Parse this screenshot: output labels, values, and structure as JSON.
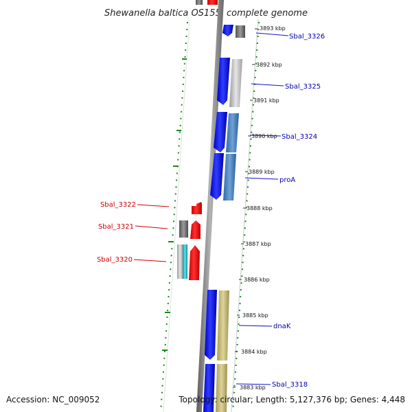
{
  "title": "Shewanella baltica OS155, complete genome",
  "footer": {
    "accession": "Accession: NC_009052",
    "topology": "Topology: circular; Length: 5,127,376 bp; Genes: 4,448"
  },
  "colors": {
    "forward_gene": "#1010ee",
    "reverse_gene": "#ee1010",
    "gray_feature": "#777777",
    "steel_feature": "#4a86c0",
    "khaki_feature": "#c6bc78",
    "cyan_feature": "#22b8c8",
    "gc_dots": "#138a13",
    "forward_label": "#0000aa",
    "reverse_label": "#cc0000"
  },
  "ticks": [
    {
      "label": "3893 kbp"
    },
    {
      "label": "3892 kbp"
    },
    {
      "label": "3891 kbp"
    },
    {
      "label": "3890 kbp"
    },
    {
      "label": "3889 kbp"
    },
    {
      "label": "3888 kbp"
    },
    {
      "label": "3887 kbp"
    },
    {
      "label": "3886 kbp"
    },
    {
      "label": "3885 kbp"
    },
    {
      "label": "3884 kbp"
    },
    {
      "label": "3883 kbp"
    }
  ],
  "gene_labels": [
    {
      "text": "Sbal_3326",
      "strand": "forward"
    },
    {
      "text": "Sbal_3325",
      "strand": "forward"
    },
    {
      "text": "Sbal_3324",
      "strand": "forward"
    },
    {
      "text": "proA",
      "strand": "forward"
    },
    {
      "text": "dnaK",
      "strand": "forward"
    },
    {
      "text": "Sbal_3318",
      "strand": "forward"
    },
    {
      "text": "Sbal_3322",
      "strand": "reverse"
    },
    {
      "text": "Sbal_3321",
      "strand": "reverse"
    },
    {
      "text": "Sbal_3320",
      "strand": "reverse"
    }
  ]
}
